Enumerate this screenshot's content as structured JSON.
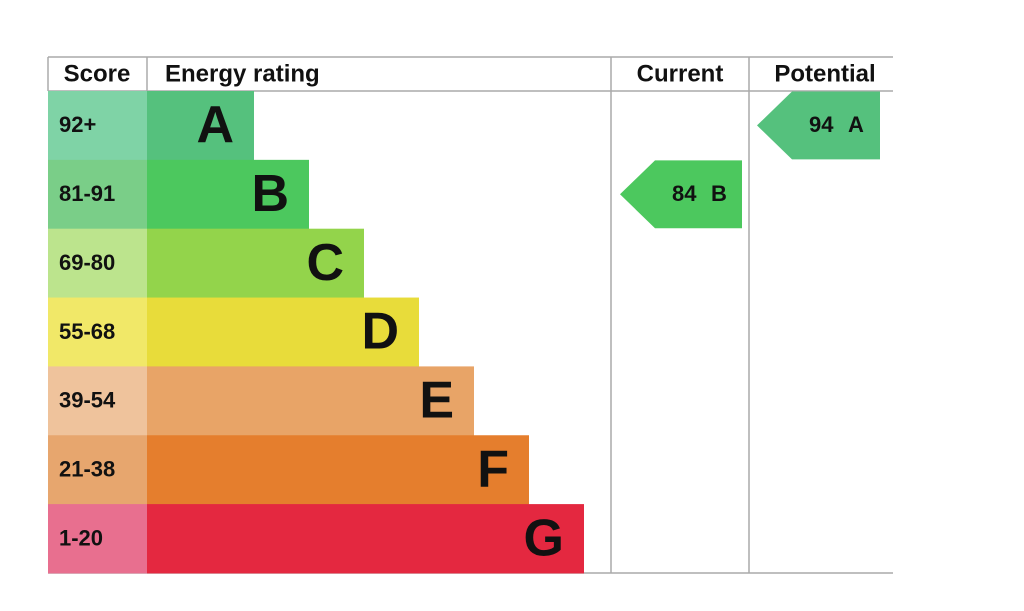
{
  "header": {
    "score": "Score",
    "energy_rating": "Energy rating",
    "current": "Current",
    "potential": "Potential"
  },
  "rows": [
    {
      "score": "92+",
      "rating": "A",
      "color": "#55c17d",
      "score_color": "#7fd3a6"
    },
    {
      "score": "81-91",
      "rating": "B",
      "color": "#4cc85e",
      "score_color": "#7ace88"
    },
    {
      "score": "69-80",
      "rating": "C",
      "color": "#93d44b",
      "score_color": "#bce48d"
    },
    {
      "score": "55-68",
      "rating": "D",
      "color": "#e8dc3a",
      "score_color": "#f1e868"
    },
    {
      "score": "39-54",
      "rating": "E",
      "color": "#e8a467",
      "score_color": "#efc39c"
    },
    {
      "score": "21-38",
      "rating": "F",
      "color": "#e57e2d",
      "score_color": "#e7a66e"
    },
    {
      "score": "1-20",
      "rating": "G",
      "color": "#e42840",
      "score_color": "#e86f8f"
    }
  ],
  "current": {
    "value": 84,
    "rating": "B",
    "color": "#4cc85e"
  },
  "potential": {
    "value": 94,
    "rating": "A",
    "color": "#55c17d"
  }
}
